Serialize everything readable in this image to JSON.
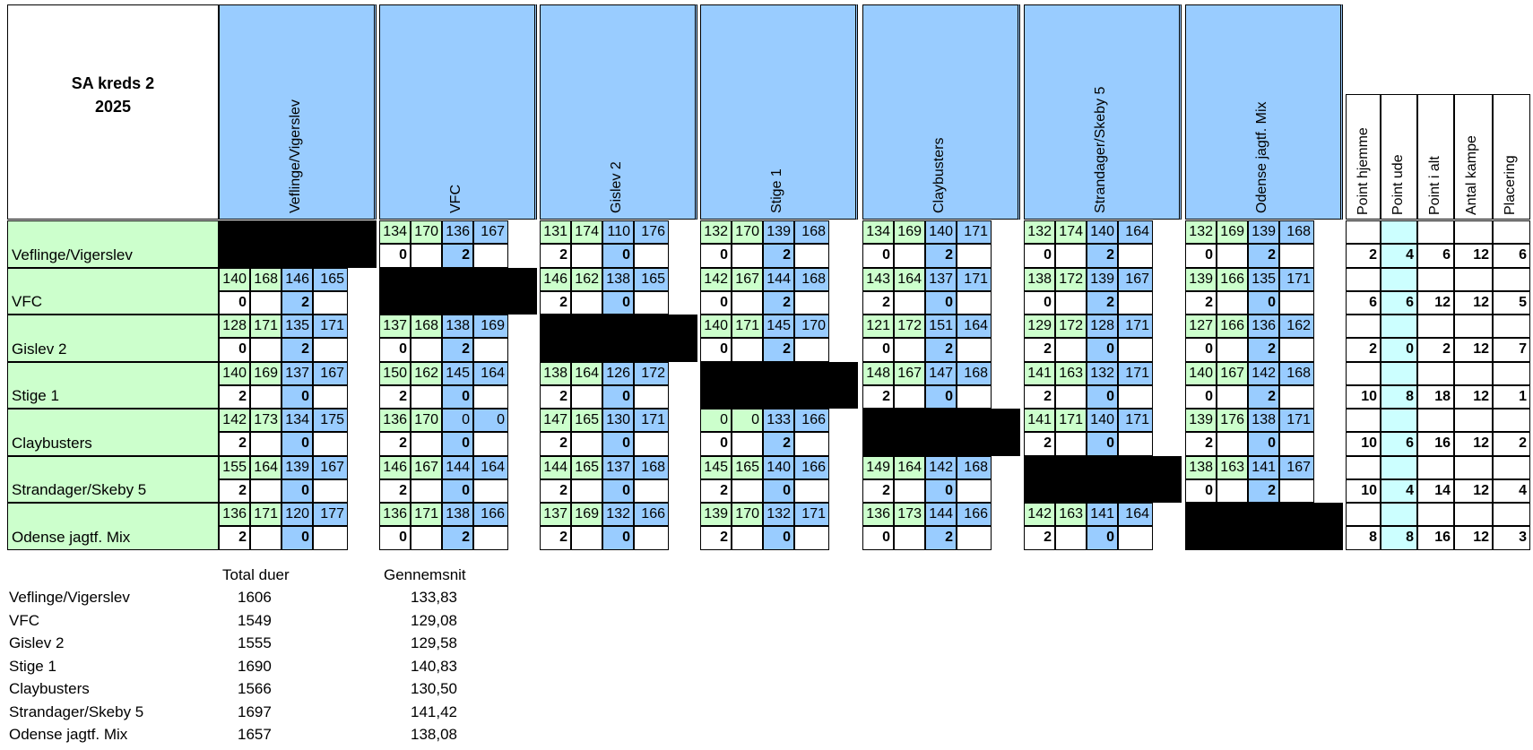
{
  "title_line1": "SA kreds 2",
  "title_line2": "2025",
  "teams": [
    "Veflinge/Vigerslev",
    "VFC",
    "Gislev 2",
    "Stige 1",
    "Claybusters",
    "Strandager/Skeby 5",
    "Odense jagtf. Mix"
  ],
  "stat_headers": [
    "Point hjemme",
    "Point ude",
    "Point i alt",
    "Antal kampe",
    "Placering"
  ],
  "colors": {
    "header_blue": "#99ccff",
    "team_green": "#ccffcc",
    "score_blue": "#99ccff",
    "light_cyan": "#ccffff",
    "self_black": "#000000"
  },
  "matches": [
    [
      null,
      [
        134,
        170,
        136,
        167,
        0,
        2
      ],
      [
        131,
        174,
        110,
        176,
        2,
        0
      ],
      [
        132,
        170,
        139,
        168,
        0,
        2
      ],
      [
        134,
        169,
        140,
        171,
        0,
        2
      ],
      [
        132,
        174,
        140,
        164,
        0,
        2
      ],
      [
        132,
        169,
        139,
        168,
        0,
        2
      ]
    ],
    [
      [
        140,
        168,
        146,
        165,
        0,
        2
      ],
      null,
      [
        146,
        162,
        138,
        165,
        2,
        0
      ],
      [
        142,
        167,
        144,
        168,
        0,
        2
      ],
      [
        143,
        164,
        137,
        171,
        2,
        0
      ],
      [
        138,
        172,
        139,
        167,
        0,
        2
      ],
      [
        139,
        166,
        135,
        171,
        2,
        0
      ]
    ],
    [
      [
        128,
        171,
        135,
        171,
        0,
        2
      ],
      [
        137,
        168,
        138,
        169,
        0,
        2
      ],
      null,
      [
        140,
        171,
        145,
        170,
        0,
        2
      ],
      [
        121,
        172,
        151,
        164,
        0,
        2
      ],
      [
        129,
        172,
        128,
        171,
        2,
        0
      ],
      [
        127,
        166,
        136,
        162,
        0,
        2
      ]
    ],
    [
      [
        140,
        169,
        137,
        167,
        2,
        0
      ],
      [
        150,
        162,
        145,
        164,
        2,
        0
      ],
      [
        138,
        164,
        126,
        172,
        2,
        0
      ],
      null,
      [
        148,
        167,
        147,
        168,
        2,
        0
      ],
      [
        141,
        163,
        132,
        171,
        2,
        0
      ],
      [
        140,
        167,
        142,
        168,
        0,
        2
      ]
    ],
    [
      [
        142,
        173,
        134,
        175,
        2,
        0
      ],
      [
        136,
        170,
        0,
        0,
        2,
        0
      ],
      [
        147,
        165,
        130,
        171,
        2,
        0
      ],
      [
        0,
        0,
        133,
        166,
        0,
        2
      ],
      null,
      [
        141,
        171,
        140,
        171,
        2,
        0
      ],
      [
        139,
        176,
        138,
        171,
        2,
        0
      ]
    ],
    [
      [
        155,
        164,
        139,
        167,
        2,
        0
      ],
      [
        146,
        167,
        144,
        164,
        2,
        0
      ],
      [
        144,
        165,
        137,
        168,
        2,
        0
      ],
      [
        145,
        165,
        140,
        166,
        2,
        0
      ],
      [
        149,
        164,
        142,
        168,
        2,
        0
      ],
      null,
      [
        138,
        163,
        141,
        167,
        0,
        2
      ]
    ],
    [
      [
        136,
        171,
        120,
        177,
        2,
        0
      ],
      [
        136,
        171,
        138,
        166,
        0,
        2
      ],
      [
        137,
        169,
        132,
        166,
        2,
        0
      ],
      [
        139,
        170,
        132,
        171,
        2,
        0
      ],
      [
        136,
        173,
        144,
        166,
        0,
        2
      ],
      [
        142,
        163,
        141,
        164,
        2,
        0
      ],
      null
    ]
  ],
  "stats": [
    [
      2,
      4,
      6,
      12,
      6
    ],
    [
      6,
      6,
      12,
      12,
      5
    ],
    [
      2,
      0,
      2,
      12,
      7
    ],
    [
      10,
      8,
      18,
      12,
      1
    ],
    [
      10,
      6,
      16,
      12,
      2
    ],
    [
      10,
      4,
      14,
      12,
      4
    ],
    [
      8,
      8,
      16,
      12,
      3
    ]
  ],
  "summary": {
    "col_total": "Total duer",
    "col_avg": "Gennemsnit",
    "rows": [
      {
        "team": "Veflinge/Vigerslev",
        "total": "1606",
        "avg": "133,83"
      },
      {
        "team": "VFC",
        "total": "1549",
        "avg": "129,08"
      },
      {
        "team": "Gislev 2",
        "total": "1555",
        "avg": "129,58"
      },
      {
        "team": "Stige 1",
        "total": "1690",
        "avg": "140,83"
      },
      {
        "team": "Claybusters",
        "total": "1566",
        "avg": "130,50"
      },
      {
        "team": "Strandager/Skeby 5",
        "total": "1697",
        "avg": "141,42"
      },
      {
        "team": "Odense jagtf. Mix",
        "total": "1657",
        "avg": "138,08"
      }
    ]
  }
}
